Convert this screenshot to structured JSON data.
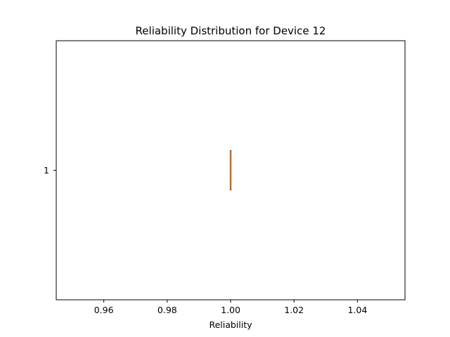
{
  "chart_data": {
    "type": "box",
    "orientation": "horizontal",
    "title": "Reliability Distribution for Device 12",
    "xlabel": "Reliability",
    "ylabel": "",
    "xlim": [
      0.945,
      1.055
    ],
    "x_ticks": [
      0.96,
      0.98,
      1.0,
      1.02,
      1.04
    ],
    "x_tick_labels": [
      "0.96",
      "0.98",
      "1.00",
      "1.02",
      "1.04"
    ],
    "y_ticks": [
      1
    ],
    "y_tick_labels": [
      "1"
    ],
    "grid": false,
    "boxes": [
      {
        "position": 1,
        "min": 1.0,
        "q1": 1.0,
        "median": 1.0,
        "q3": 1.0,
        "max": 1.0,
        "box_color": "#000000",
        "median_color": "#ff7f0e"
      }
    ]
  }
}
